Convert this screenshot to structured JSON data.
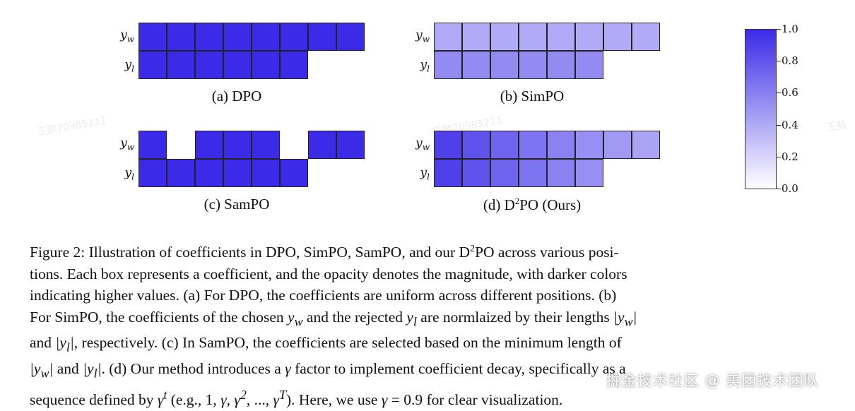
{
  "row_labels": {
    "yw": "y",
    "yw_sub": "w",
    "yl": "y",
    "yl_sub": "l"
  },
  "panels": [
    {
      "caption": "(a) DPO",
      "yw": [
        1,
        1,
        1,
        1,
        1,
        1,
        1,
        1
      ],
      "yl": [
        1,
        1,
        1,
        1,
        1,
        1
      ]
    },
    {
      "caption": "(b) SimPO",
      "yw": [
        0.4,
        0.4,
        0.4,
        0.4,
        0.4,
        0.4,
        0.4,
        0.4
      ],
      "yl": [
        0.55,
        0.55,
        0.55,
        0.55,
        0.55,
        0.55
      ]
    },
    {
      "caption": "(c) SamPO",
      "yw": [
        1,
        null,
        1,
        1,
        1,
        null,
        1,
        1
      ],
      "yl": [
        1,
        1,
        1,
        1,
        1,
        1
      ]
    },
    {
      "caption_pre": "(d) D",
      "caption_sup": "2",
      "caption_post": "PO (Ours)",
      "yw": [
        0.9,
        0.81,
        0.73,
        0.66,
        0.59,
        0.53,
        0.48,
        0.43
      ],
      "yl": [
        0.9,
        0.81,
        0.73,
        0.66,
        0.59,
        0.53
      ]
    }
  ],
  "colorbar": {
    "ticks": [
      "1.0",
      "0.8",
      "0.6",
      "0.4",
      "0.2",
      "0.0"
    ],
    "color_max": "#3b2be8",
    "color_min": "#ffffff"
  },
  "caption": {
    "l1a": "Figure 2: Illustration of coefficients in DPO, SimPO, SamPO, and our D",
    "l1sup": "2",
    "l1b": "PO across various posi-",
    "l2": "tions. Each box represents a coefficient, and the opacity denotes the magnitude, with darker colors",
    "l3": "indicating higher values. (a) For DPO, the coefficients are uniform across different positions. (b)",
    "l4a": "For SimPO, the coefficients of the chosen ",
    "l4b": " and the rejected ",
    "l4c": " are normlaized by their lengths ",
    "l5a": "and ",
    "l5b": ", respectively. (c) In SamPO, the coefficients are selected based on the minimum length of",
    "l6a": " and ",
    "l6b": ". (d) Our method introduces a ",
    "l6c": " factor to implement coefficient decay, specifically as a",
    "l7a": "sequence defined by ",
    "l7b": " (e.g., 1, ",
    "l7c": ", ..., ",
    "l7d": "). Here, we use ",
    "l7e": " = 0.9 for clear visualization.",
    "m_yw": "|y_w|",
    "m_yl": "|y_l|",
    "gamma": "γ",
    "gamma_t": "γ^t",
    "gamma_2": "γ²",
    "gamma_T": "γ^T"
  },
  "watermark": "掘金技术社区 @ 美团技术团队",
  "faint_marks": [
    "王麟70985211",
    "王麟70985211",
    "王麟"
  ]
}
